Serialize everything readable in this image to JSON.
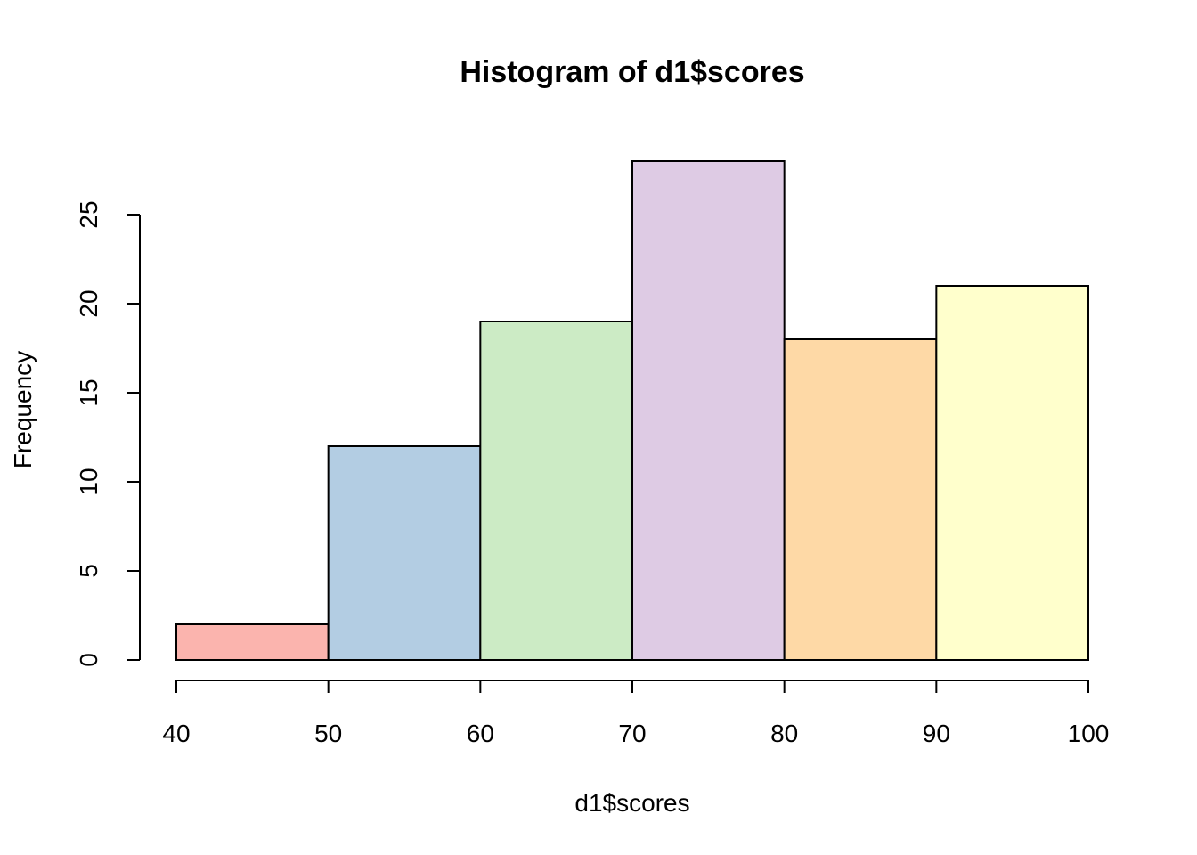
{
  "chart_data": {
    "type": "bar",
    "title": "Histogram of d1$scores",
    "xlabel": "d1$scores",
    "ylabel": "Frequency",
    "bins": [
      [
        40,
        50
      ],
      [
        50,
        60
      ],
      [
        60,
        70
      ],
      [
        70,
        80
      ],
      [
        80,
        90
      ],
      [
        90,
        100
      ]
    ],
    "values": [
      2,
      12,
      19,
      28,
      18,
      21
    ],
    "colors": [
      "#FBB4AE",
      "#B3CDE3",
      "#CCEBC5",
      "#DECBE4",
      "#FED9A6",
      "#FFFFCC"
    ],
    "xlim": [
      40,
      100
    ],
    "ylim": [
      0,
      28
    ],
    "xticks": [
      "40",
      "50",
      "60",
      "70",
      "80",
      "90",
      "100"
    ],
    "yticks": [
      "0",
      "5",
      "10",
      "15",
      "20",
      "25"
    ],
    "grid": false,
    "legend": "none"
  }
}
